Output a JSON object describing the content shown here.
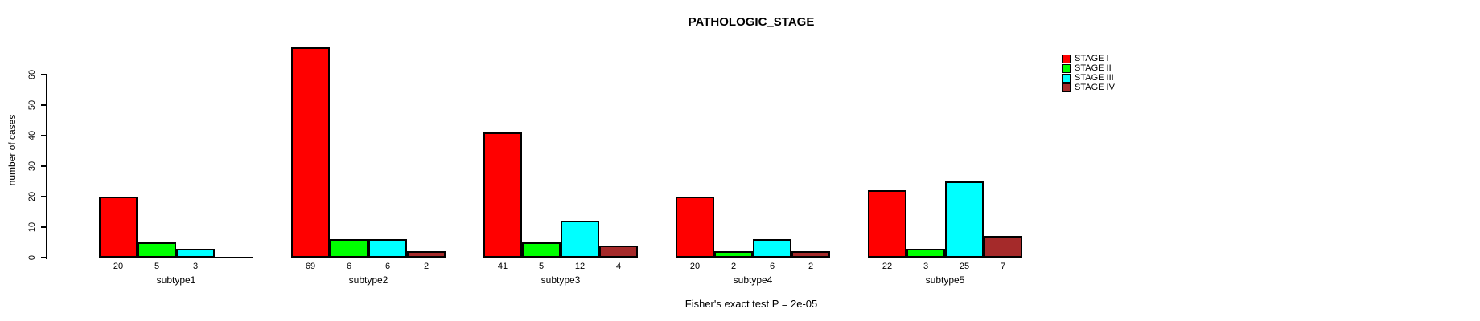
{
  "figure": {
    "title": "PATHOLOGIC_STAGE",
    "caption": "Fisher's exact test P = 2e-05"
  },
  "chart_data": {
    "type": "bar",
    "title": "PATHOLOGIC_STAGE",
    "xlabel": "",
    "ylabel": "number of cases",
    "categories": [
      "subtype1",
      "subtype2",
      "subtype3",
      "subtype4",
      "subtype5"
    ],
    "series": [
      {
        "name": "STAGE I",
        "color": "#FF0000",
        "values": [
          20,
          69,
          41,
          20,
          22
        ]
      },
      {
        "name": "STAGE II",
        "color": "#00FF00",
        "values": [
          5,
          6,
          5,
          2,
          3
        ]
      },
      {
        "name": "STAGE III",
        "color": "#00FFFF",
        "values": [
          3,
          6,
          12,
          6,
          25
        ]
      },
      {
        "name": "STAGE IV",
        "color": "#A52A2A",
        "values": [
          0,
          2,
          4,
          2,
          7
        ]
      }
    ],
    "yticks": [
      0,
      10,
      20,
      30,
      40,
      50,
      60
    ],
    "ylim": [
      0,
      69
    ],
    "grid": false,
    "legend_position": "top-right",
    "bar_value_labels": true,
    "hide_zero_value_labels": true,
    "annotation": "Fisher's exact test P = 2e-05"
  }
}
